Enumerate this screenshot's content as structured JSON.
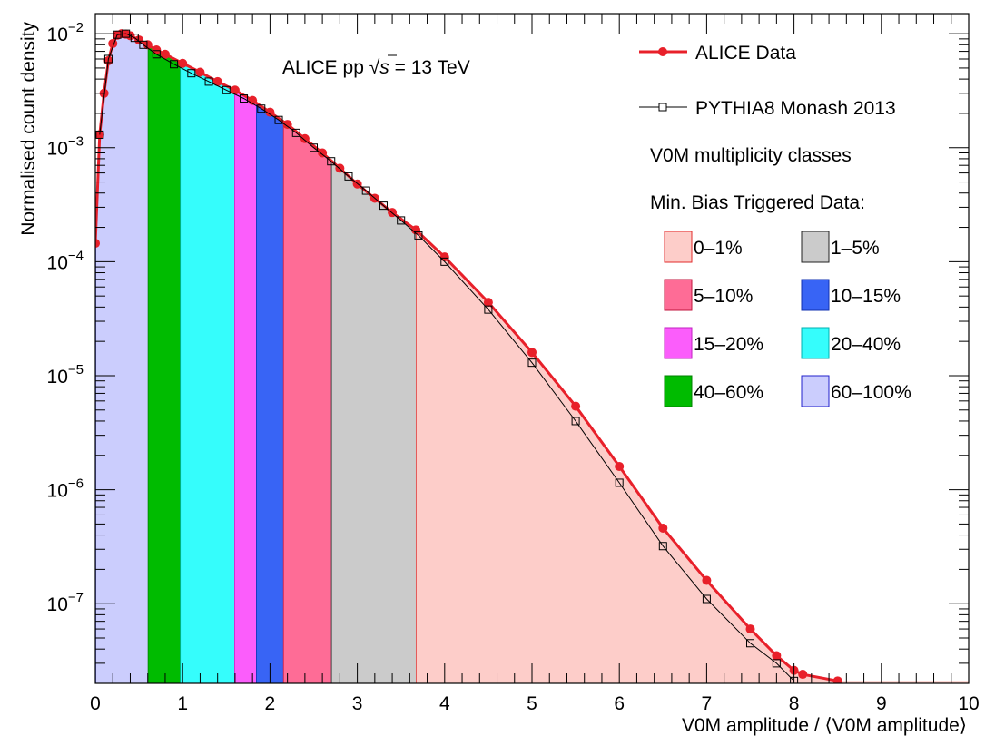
{
  "chart_data": {
    "type": "area",
    "title": "",
    "annotation": {
      "prefix": "ALICE pp ",
      "sqrt": "√",
      "s": "s",
      "suffix": " = 13 TeV"
    },
    "xlabel": "V0M amplitude / ⟨V0M amplitude⟩",
    "ylabel": "Normalised count density",
    "xlim": [
      0,
      10
    ],
    "ylim": [
      2e-08,
      0.015
    ],
    "yscale": "log",
    "x_ticks": [
      "0",
      "1",
      "2",
      "3",
      "4",
      "5",
      "6",
      "7",
      "8",
      "9",
      "10"
    ],
    "y_ticks": [
      {
        "mantissa": "10",
        "exp": "−7",
        "value": 1e-07
      },
      {
        "mantissa": "10",
        "exp": "−6",
        "value": 1e-06
      },
      {
        "mantissa": "10",
        "exp": "−5",
        "value": 1e-05
      },
      {
        "mantissa": "10",
        "exp": "−4",
        "value": 0.0001
      },
      {
        "mantissa": "10",
        "exp": "−3",
        "value": 0.001
      },
      {
        "mantissa": "10",
        "exp": "−2",
        "value": 0.01
      }
    ],
    "legend": {
      "position": "top-right",
      "data_label": "ALICE Data",
      "mc_label": "PYTHIA8 Monash 2013",
      "classes_title": "V0M multiplicity classes",
      "classes_subtitle": "Min. Bias Triggered Data:"
    },
    "classes": [
      {
        "label": "0–1%",
        "x_min": 3.67,
        "x_max": 10.0,
        "color": "#fdcdc9",
        "edge": "#e22b2b"
      },
      {
        "label": "1–5%",
        "x_min": 2.7,
        "x_max": 3.67,
        "color": "#cbcbcb",
        "edge": "#222222"
      },
      {
        "label": "5–10%",
        "x_min": 2.15,
        "x_max": 2.7,
        "color": "#fe6c96",
        "edge": "#c0143c"
      },
      {
        "label": "10–15%",
        "x_min": 1.84,
        "x_max": 2.15,
        "color": "#3864f5",
        "edge": "#1030b0"
      },
      {
        "label": "15–20%",
        "x_min": 1.59,
        "x_max": 1.84,
        "color": "#fb5dfb",
        "edge": "#c020c0"
      },
      {
        "label": "20–40%",
        "x_min": 0.97,
        "x_max": 1.59,
        "color": "#35fdfc",
        "edge": "#00b0b0"
      },
      {
        "label": "40–60%",
        "x_min": 0.6,
        "x_max": 0.97,
        "color": "#00bb00",
        "edge": "#008000"
      },
      {
        "label": "60–100%",
        "x_min": 0.0,
        "x_max": 0.6,
        "color": "#cbcdfd",
        "edge": "#2020cc"
      }
    ],
    "series": [
      {
        "name": "ALICE Data",
        "color": "#e8202a",
        "marker": "filled-circle",
        "points": [
          [
            0.0,
            0.000145
          ],
          [
            0.05,
            0.0013
          ],
          [
            0.1,
            0.003
          ],
          [
            0.15,
            0.0058
          ],
          [
            0.2,
            0.0082
          ],
          [
            0.25,
            0.0097
          ],
          [
            0.3,
            0.01
          ],
          [
            0.35,
            0.0099
          ],
          [
            0.4,
            0.0096
          ],
          [
            0.5,
            0.0088
          ],
          [
            0.6,
            0.008
          ],
          [
            0.7,
            0.0072
          ],
          [
            0.8,
            0.0066
          ],
          [
            1.0,
            0.0055
          ],
          [
            1.2,
            0.0046
          ],
          [
            1.4,
            0.0038
          ],
          [
            1.6,
            0.0032
          ],
          [
            1.8,
            0.0026
          ],
          [
            2.0,
            0.00205
          ],
          [
            2.2,
            0.0016
          ],
          [
            2.4,
            0.0012
          ],
          [
            2.6,
            0.0009
          ],
          [
            2.8,
            0.00066
          ],
          [
            3.0,
            0.00048
          ],
          [
            3.2,
            0.00036
          ],
          [
            3.4,
            0.00027
          ],
          [
            3.67,
            0.00019
          ],
          [
            4.0,
            0.00011
          ],
          [
            4.5,
            4.4e-05
          ],
          [
            5.0,
            1.6e-05
          ],
          [
            5.5,
            5.4e-06
          ],
          [
            6.0,
            1.6e-06
          ],
          [
            6.5,
            4.6e-07
          ],
          [
            7.0,
            1.6e-07
          ],
          [
            7.5,
            6e-08
          ],
          [
            7.8,
            3.5e-08
          ],
          [
            8.0,
            2.6e-08
          ],
          [
            8.1,
            2.4e-08
          ],
          [
            8.5,
            2.1e-08
          ]
        ]
      },
      {
        "name": "PYTHIA8 Monash 2013",
        "color": "#000000",
        "marker": "open-square",
        "points": [
          [
            0.05,
            0.0013
          ],
          [
            0.15,
            0.006
          ],
          [
            0.25,
            0.0098
          ],
          [
            0.35,
            0.01
          ],
          [
            0.45,
            0.0092
          ],
          [
            0.55,
            0.008
          ],
          [
            0.7,
            0.0066
          ],
          [
            0.9,
            0.0054
          ],
          [
            1.1,
            0.0045
          ],
          [
            1.3,
            0.0038
          ],
          [
            1.5,
            0.0032
          ],
          [
            1.7,
            0.0027
          ],
          [
            1.9,
            0.0022
          ],
          [
            2.1,
            0.00175
          ],
          [
            2.3,
            0.00135
          ],
          [
            2.5,
            0.001
          ],
          [
            2.7,
            0.00076
          ],
          [
            2.9,
            0.00056
          ],
          [
            3.1,
            0.00042
          ],
          [
            3.3,
            0.00031
          ],
          [
            3.5,
            0.00023
          ],
          [
            3.7,
            0.00017
          ],
          [
            4.0,
            0.0001
          ],
          [
            4.5,
            3.8e-05
          ],
          [
            5.0,
            1.3e-05
          ],
          [
            5.5,
            4e-06
          ],
          [
            6.0,
            1.15e-06
          ],
          [
            6.5,
            3.2e-07
          ],
          [
            7.0,
            1.1e-07
          ],
          [
            7.5,
            4.5e-08
          ],
          [
            7.8,
            3e-08
          ],
          [
            8.0,
            2.1e-08
          ]
        ]
      }
    ]
  }
}
